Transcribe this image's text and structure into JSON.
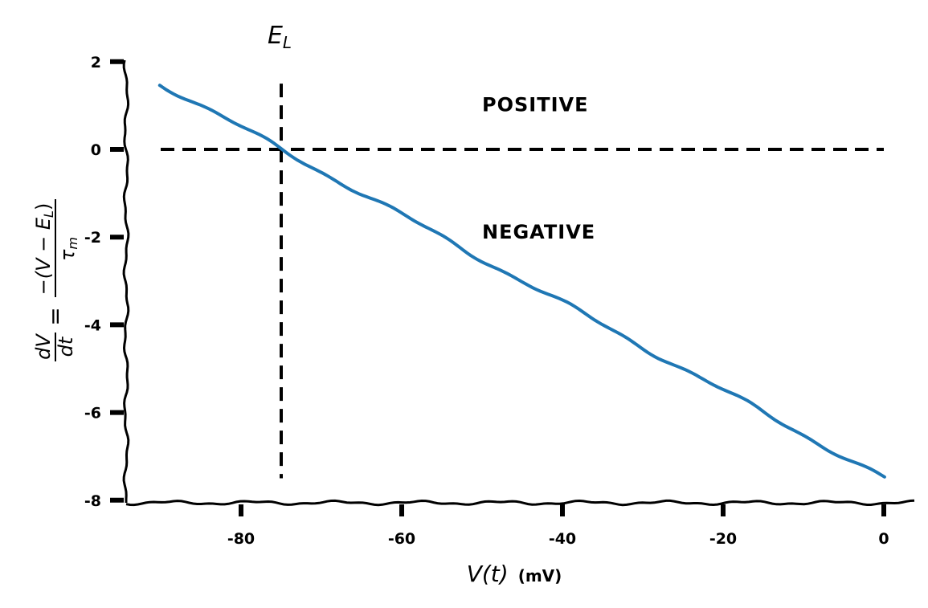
{
  "chart_data": {
    "type": "line",
    "style": "xkcd",
    "xlabel_var": "V(t)",
    "xlabel_unit": "(mV)",
    "ylabel": {
      "lhs_num": "dV",
      "lhs_den": "dt",
      "eq": "=",
      "rhs_num": "−(V − E",
      "rhs_num_sub": "L",
      "rhs_num_close": ")",
      "rhs_den": "τ",
      "rhs_den_sub": "m"
    },
    "xlim": [
      -94.5,
      3.5
    ],
    "ylim": [
      -8,
      2
    ],
    "xticks": [
      -80,
      -60,
      -40,
      -20,
      0
    ],
    "yticks": [
      2,
      0,
      -2,
      -4,
      -6,
      -8
    ],
    "grid": false,
    "series": [
      {
        "x": [
          -90,
          0
        ],
        "y": [
          1.5,
          -7.5
        ],
        "color": "#1f77b4"
      }
    ],
    "E_L": -75,
    "tau_m": 10,
    "hline": {
      "y": 0,
      "x": [
        -90,
        0
      ],
      "style": "dashed",
      "color": "#000000"
    },
    "vline": {
      "x": -75,
      "y": [
        -7.5,
        1.5
      ],
      "style": "dashed",
      "color": "#000000"
    },
    "annotations": [
      {
        "text": "E",
        "sub": "L",
        "x": -75,
        "y": 2.6
      },
      {
        "text": "POSITIVE",
        "x": -50,
        "y": 1.05
      },
      {
        "text": "NEGATIVE",
        "x": -50,
        "y": -1.85
      }
    ]
  }
}
